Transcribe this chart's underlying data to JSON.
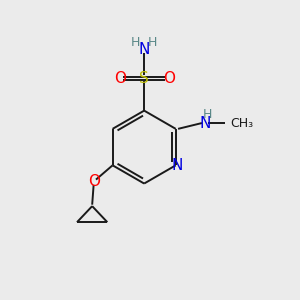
{
  "bg_color": "#ebebeb",
  "bond_color": "#1a1a1a",
  "atom_colors": {
    "N": "#0000e0",
    "O": "#ff0000",
    "S": "#b8b800",
    "H": "#5a8888",
    "C": "#1a1a1a"
  },
  "font_size_atom": 11,
  "font_size_h": 9,
  "font_size_me": 9,
  "fig_size": [
    3.0,
    3.0
  ],
  "dpi": 100
}
